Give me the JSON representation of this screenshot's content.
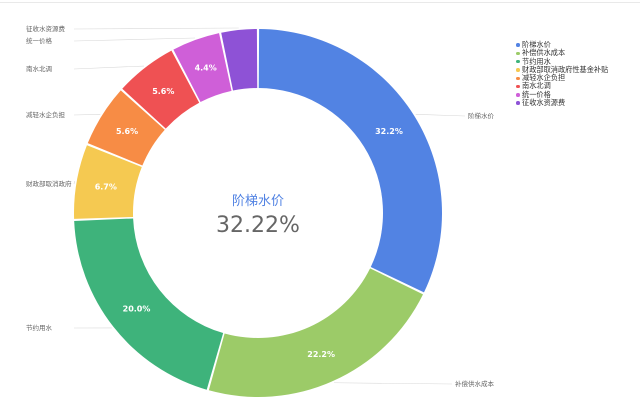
{
  "chart_data": {
    "type": "pie",
    "donut": true,
    "center_label": "阶梯水价",
    "center_value": "32.22%",
    "legend_position": "top-right",
    "slices": [
      {
        "name": "阶梯水价",
        "value": 32.2,
        "label": "32.2%",
        "color": "#5283e3"
      },
      {
        "name": "补偿供水成本",
        "value": 22.2,
        "label": "22.2%",
        "color": "#9ccb68"
      },
      {
        "name": "节约用水",
        "value": 20.0,
        "label": "20.0%",
        "color": "#3eb37b"
      },
      {
        "name": "财政部取消政府性基金补贴",
        "value": 6.7,
        "label": "6.7%",
        "color": "#f5c951"
      },
      {
        "name": "减轻水企负担",
        "value": 5.6,
        "label": "5.6%",
        "color": "#f78c45"
      },
      {
        "name": "南水北调",
        "value": 5.6,
        "label": "5.6%",
        "color": "#ef5153"
      },
      {
        "name": "统一价格",
        "value": 4.4,
        "label": "4.4%",
        "color": "#cf5fd8"
      },
      {
        "name": "征收水资源费",
        "value": 3.3,
        "label": "",
        "color": "#8e52d6"
      }
    ],
    "outside_labels": [
      "阶梯水价",
      "补偿供水成本",
      "节约用水",
      "财政部取消政府",
      "减轻水企负担",
      "南水北调",
      "统一价格",
      "征收水资源费"
    ]
  }
}
